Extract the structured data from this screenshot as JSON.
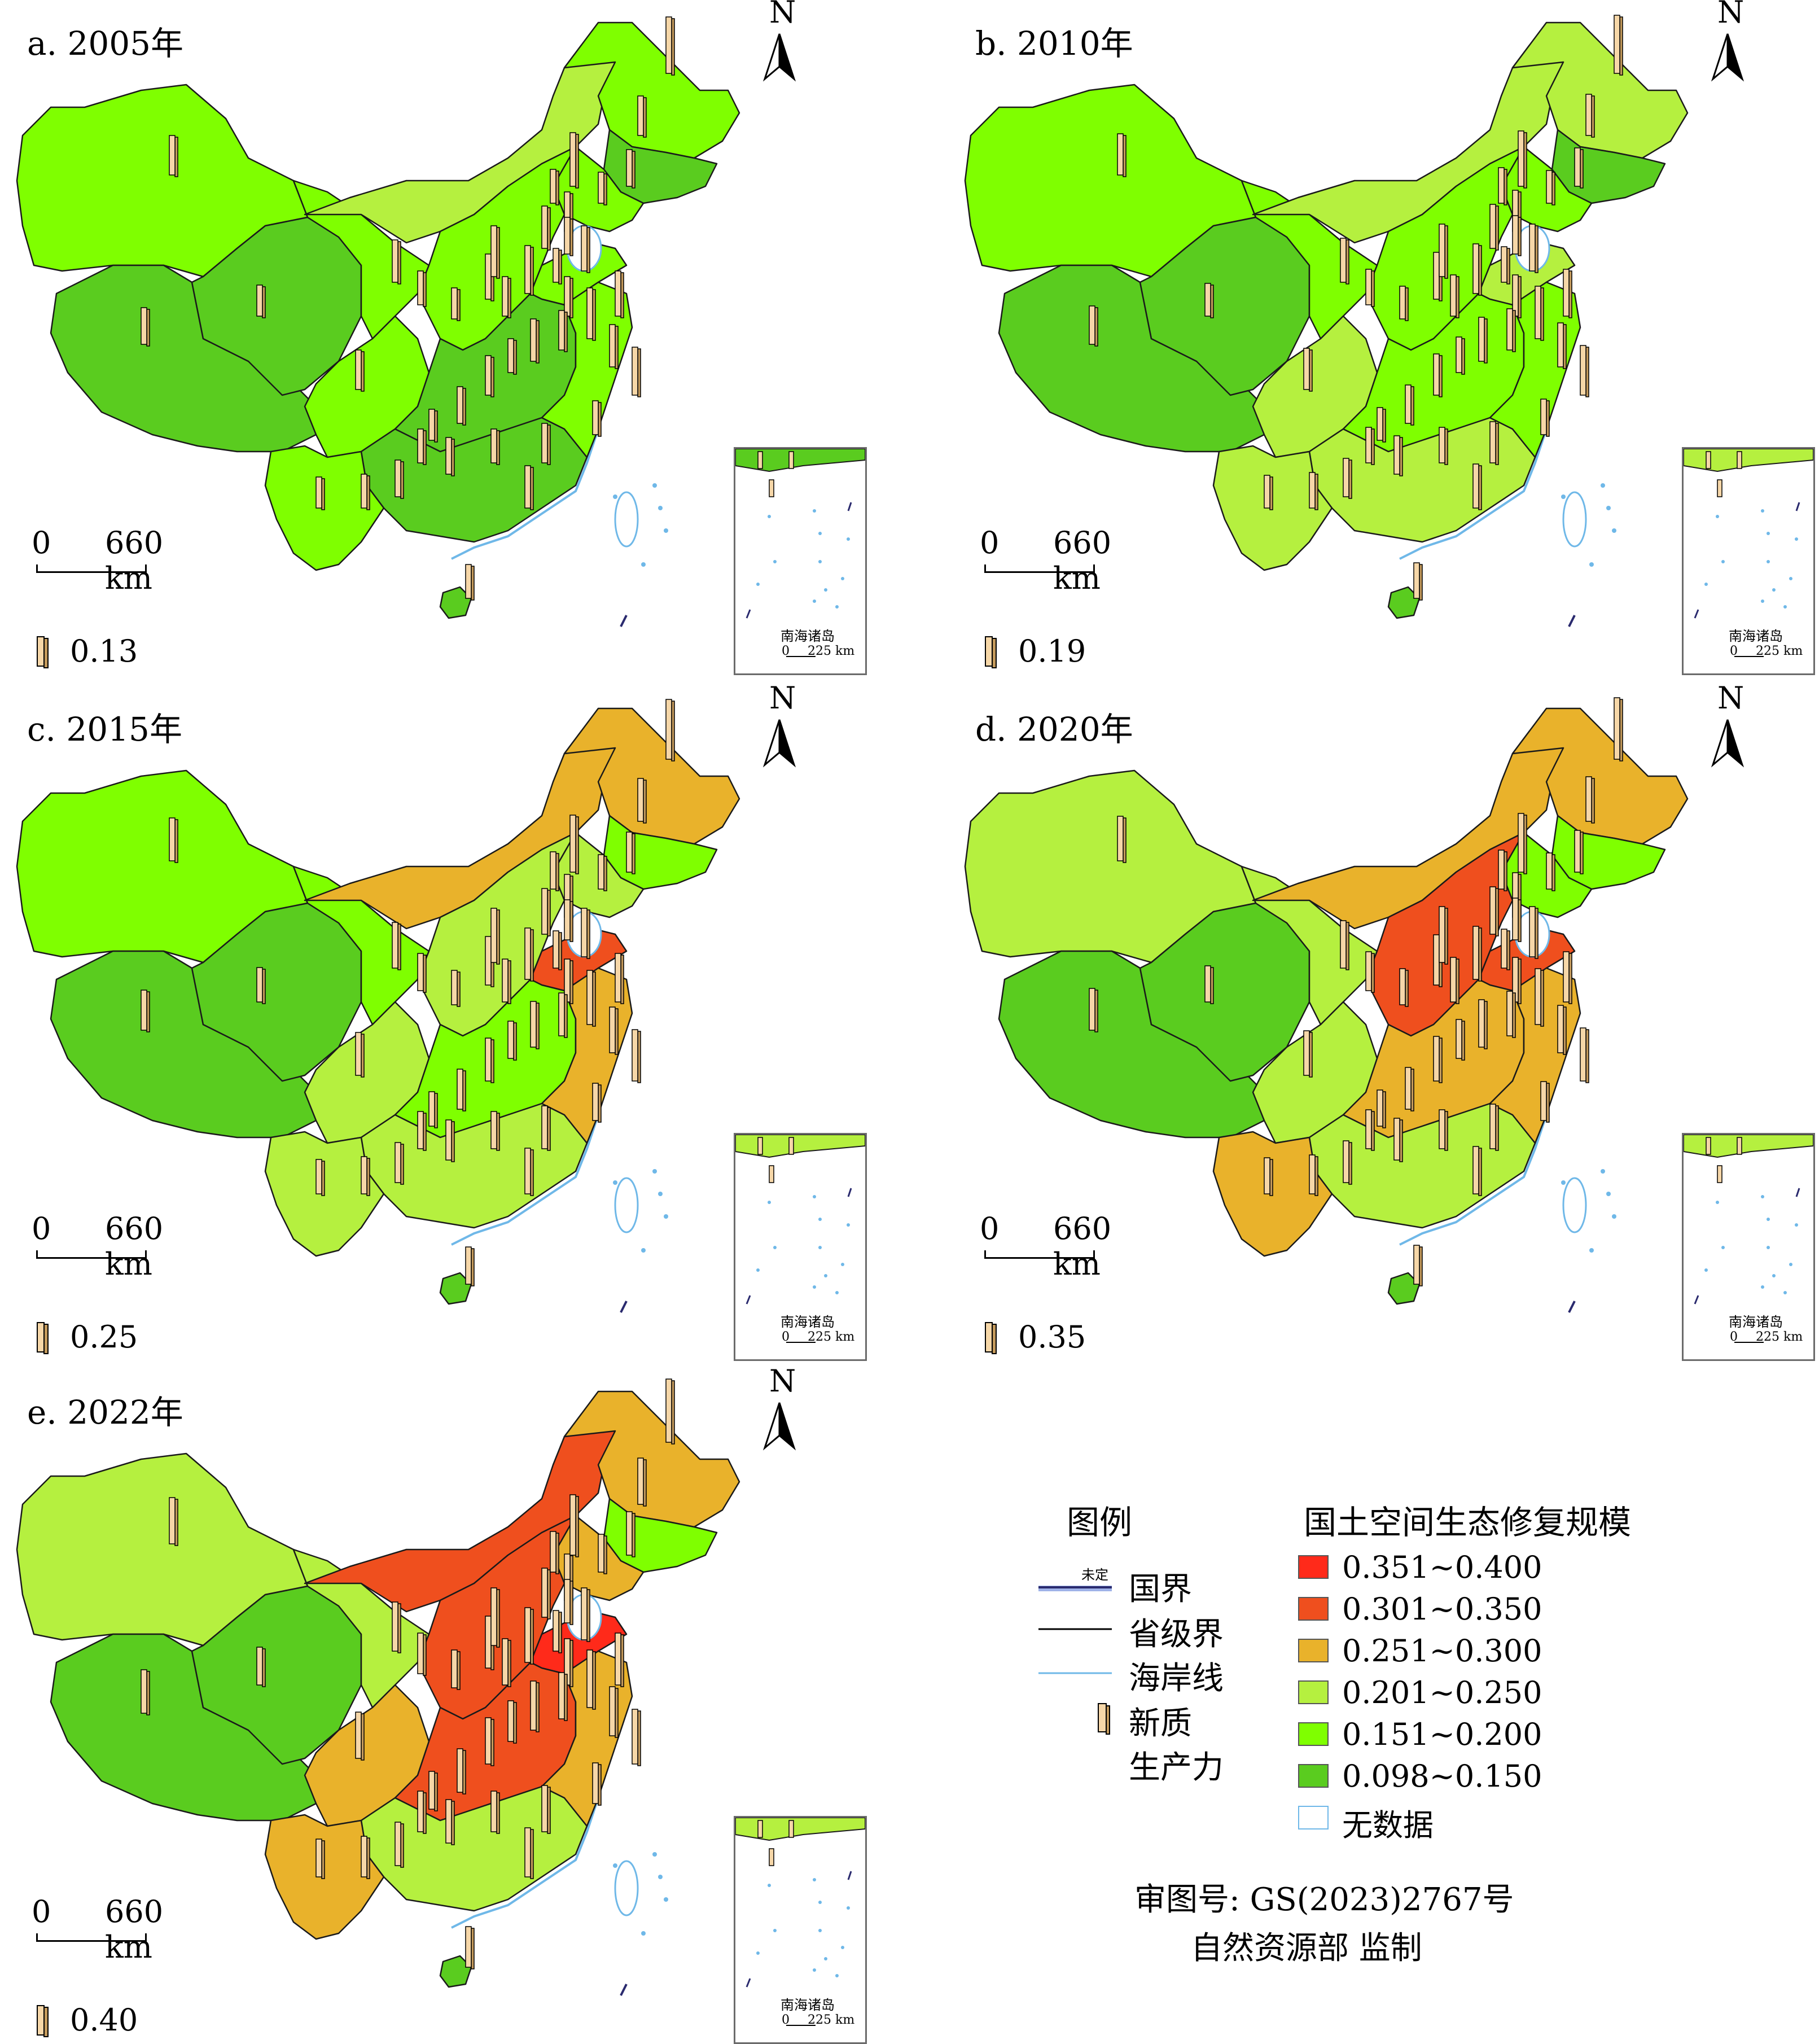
{
  "panels": [
    {
      "id": "a",
      "title": "a. 2005年",
      "scale": {
        "zero": "0",
        "distance": "660 km"
      },
      "bar_key_value": "0.13",
      "north": "N",
      "inset": {
        "label": "南海诸岛",
        "scale_zero": "0",
        "scale_distance": "225 km"
      },
      "colors": {
        "xj": "#7fff00",
        "tibet": "#5acc1f",
        "qinghai": "#5acc1f",
        "gansu": "#7fff00",
        "nm": "#b5f03f",
        "ne_heil": "#7fff00",
        "ne_jl": "#5acc1f",
        "ne_ln": "#7fff00",
        "north": "#7fff00",
        "sd": "#7fff00",
        "sichuan": "#7fff00",
        "central": "#5acc1f",
        "south": "#5acc1f",
        "yunnan": "#7fff00",
        "east": "#7fff00",
        "hainan": "#5acc1f"
      }
    },
    {
      "id": "b",
      "title": "b. 2010年",
      "scale": {
        "zero": "0",
        "distance": "660 km"
      },
      "bar_key_value": "0.19",
      "north": "N",
      "inset": {
        "label": "南海诸岛",
        "scale_zero": "0",
        "scale_distance": "225 km"
      },
      "colors": {
        "xj": "#7fff00",
        "tibet": "#5acc1f",
        "qinghai": "#5acc1f",
        "gansu": "#7fff00",
        "nm": "#b5f03f",
        "ne_heil": "#b5f03f",
        "ne_jl": "#5acc1f",
        "ne_ln": "#7fff00",
        "north": "#7fff00",
        "sd": "#b5f03f",
        "sichuan": "#b5f03f",
        "central": "#7fff00",
        "south": "#b5f03f",
        "yunnan": "#b5f03f",
        "east": "#7fff00",
        "hainan": "#5acc1f"
      }
    },
    {
      "id": "c",
      "title": "c. 2015年",
      "scale": {
        "zero": "0",
        "distance": "660 km"
      },
      "bar_key_value": "0.25",
      "north": "N",
      "inset": {
        "label": "南海诸岛",
        "scale_zero": "0",
        "scale_distance": "225 km"
      },
      "colors": {
        "xj": "#7fff00",
        "tibet": "#5acc1f",
        "qinghai": "#5acc1f",
        "gansu": "#7fff00",
        "nm": "#e9b22b",
        "ne_heil": "#e9b22b",
        "ne_jl": "#7fff00",
        "ne_ln": "#b5f03f",
        "north": "#b5f03f",
        "sd": "#ef4f1e",
        "sichuan": "#b5f03f",
        "central": "#7fff00",
        "south": "#b5f03f",
        "yunnan": "#b5f03f",
        "east": "#e9b22b",
        "hainan": "#5acc1f"
      }
    },
    {
      "id": "d",
      "title": "d. 2020年",
      "scale": {
        "zero": "0",
        "distance": "660 km"
      },
      "bar_key_value": "0.35",
      "north": "N",
      "inset": {
        "label": "南海诸岛",
        "scale_zero": "0",
        "scale_distance": "225 km"
      },
      "colors": {
        "xj": "#b5f03f",
        "tibet": "#5acc1f",
        "qinghai": "#5acc1f",
        "gansu": "#b5f03f",
        "nm": "#e9b22b",
        "ne_heil": "#e9b22b",
        "ne_jl": "#7fff00",
        "ne_ln": "#7fff00",
        "north": "#ef4f1e",
        "sd": "#ef4f1e",
        "sichuan": "#b5f03f",
        "central": "#e9b22b",
        "south": "#b5f03f",
        "yunnan": "#e9b22b",
        "east": "#e9b22b",
        "hainan": "#5acc1f"
      }
    },
    {
      "id": "e",
      "title": "e. 2022年",
      "scale": {
        "zero": "0",
        "distance": "660 km"
      },
      "bar_key_value": "0.40",
      "north": "N",
      "inset": {
        "label": "南海诸岛",
        "scale_zero": "0",
        "scale_distance": "225 km"
      },
      "colors": {
        "xj": "#b5f03f",
        "tibet": "#5acc1f",
        "qinghai": "#5acc1f",
        "gansu": "#b5f03f",
        "nm": "#ef4f1e",
        "ne_heil": "#e9b22b",
        "ne_jl": "#7fff00",
        "ne_ln": "#e9b22b",
        "north": "#ef4f1e",
        "sd": "#ff2a1a",
        "sichuan": "#e9b22b",
        "central": "#ef4f1e",
        "south": "#b5f03f",
        "yunnan": "#e9b22b",
        "east": "#e9b22b",
        "hainan": "#5acc1f"
      }
    }
  ],
  "legend": {
    "title_left": "图例",
    "title_right": "国土空间生态修复规模",
    "border_undetermined_mark": "未定",
    "items": [
      {
        "label": "国界",
        "icon": "national-border-line"
      },
      {
        "label": "省级界",
        "icon": "provincial-border-line"
      },
      {
        "label": "海岸线",
        "icon": "coastline-line"
      },
      {
        "label": "新质",
        "icon": "bar-column-icon"
      },
      {
        "label": "生产力",
        "icon": ""
      }
    ],
    "classes": [
      {
        "range": "0.351~0.400",
        "color": "#ff2a1a"
      },
      {
        "range": "0.301~0.350",
        "color": "#ef4f1e"
      },
      {
        "range": "0.251~0.300",
        "color": "#e9b22b"
      },
      {
        "range": "0.201~0.250",
        "color": "#b5f03f"
      },
      {
        "range": "0.151~0.200",
        "color": "#7fff00"
      },
      {
        "range": "0.098~0.150",
        "color": "#5acc1f"
      },
      {
        "range": "无数据",
        "color": "#ffffff",
        "border": "#6fb8e8"
      }
    ],
    "approval_line1": "审图号: GS(2023)2767号",
    "approval_line2": "自然资源部 监制"
  }
}
